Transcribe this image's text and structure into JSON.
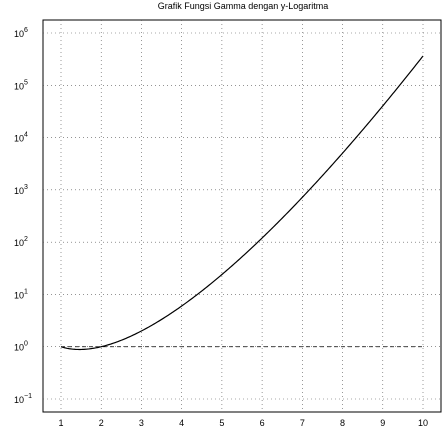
{
  "chart_data": {
    "type": "line",
    "title": "Grafik Fungsi Gamma dengan y-Logaritma",
    "xlabel": "",
    "ylabel": "",
    "xlim": [
      1,
      10
    ],
    "ylim_log10": [
      -1,
      6
    ],
    "y_scale": "log",
    "grid": true,
    "x_ticks": [
      "1",
      "2",
      "3",
      "4",
      "5",
      "6",
      "7",
      "8",
      "9",
      "10"
    ],
    "y_ticks": [
      {
        "base": "10",
        "exp": "−1"
      },
      {
        "base": "10",
        "exp": "0"
      },
      {
        "base": "10",
        "exp": "1"
      },
      {
        "base": "10",
        "exp": "2"
      },
      {
        "base": "10",
        "exp": "3"
      },
      {
        "base": "10",
        "exp": "4"
      },
      {
        "base": "10",
        "exp": "5"
      },
      {
        "base": "10",
        "exp": "6"
      }
    ],
    "series": [
      {
        "function": "gamma(x)",
        "style": "solid",
        "color": "#000000",
        "x": [
          1,
          1.25,
          1.5,
          1.75,
          2,
          2.5,
          3,
          3.5,
          4,
          4.5,
          5,
          5.5,
          6,
          6.5,
          7,
          7.5,
          8,
          8.5,
          9,
          9.5,
          10
        ],
        "y": [
          1,
          0.906,
          0.886,
          0.919,
          1,
          1.329,
          2,
          3.323,
          6,
          11.63,
          24,
          52.34,
          120,
          287.9,
          720,
          1871,
          5040,
          14034,
          40320,
          119292,
          362880
        ]
      },
      {
        "function": "y = 1",
        "style": "dashed",
        "color": "#000000",
        "x": [
          1,
          10
        ],
        "y": [
          1,
          1
        ]
      }
    ]
  }
}
